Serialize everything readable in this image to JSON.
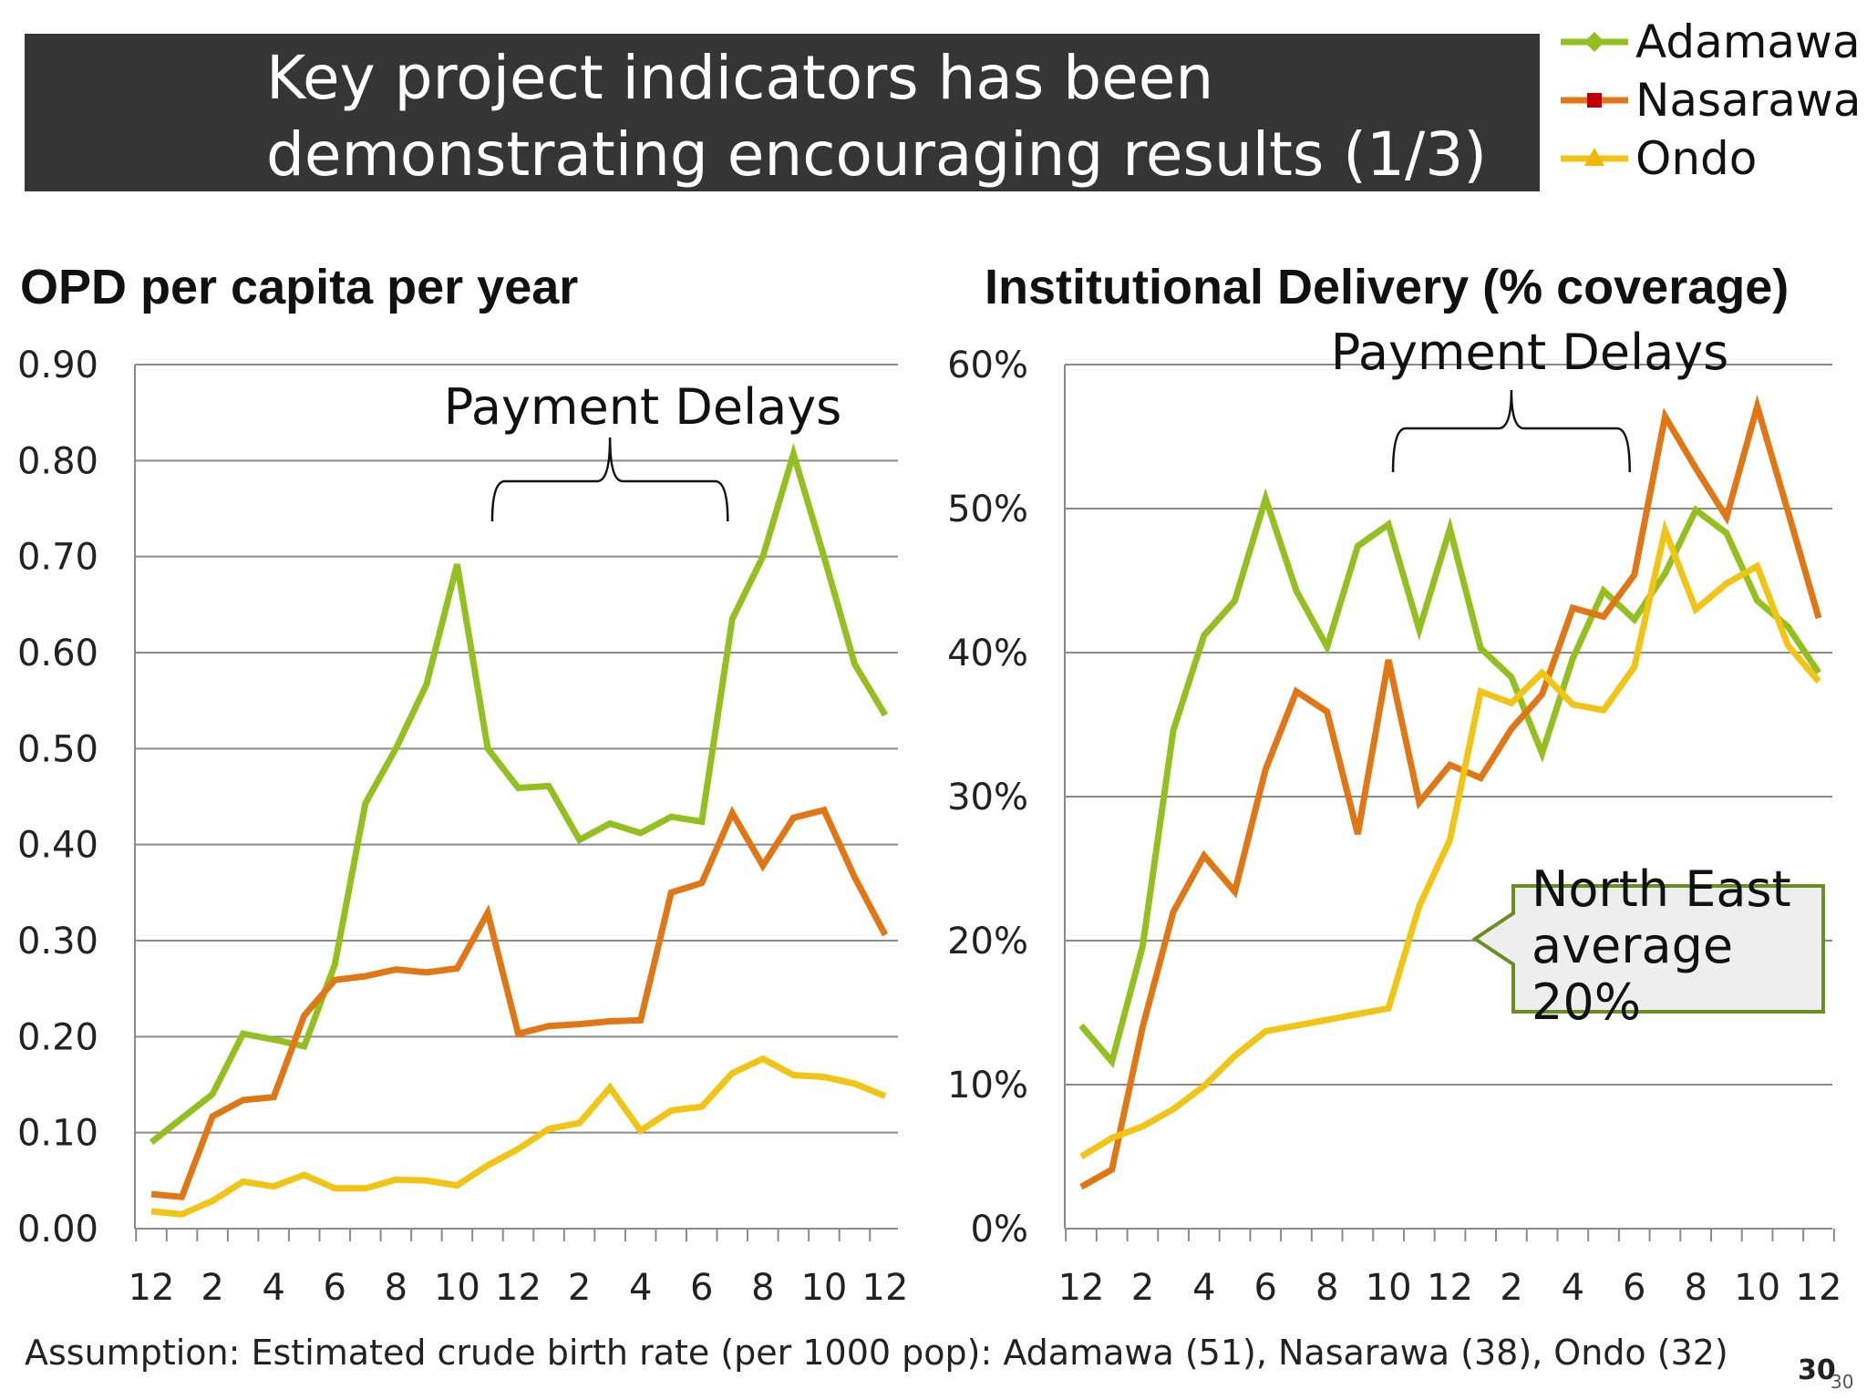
{
  "slide": {
    "title_line1": "Key project indicators has been",
    "title_line2": "demonstrating encouraging results (1/3)",
    "footnote": "Assumption: Estimated crude birth rate (per 1000 pop): Adamawa (51), Nasarawa (38), Ondo (32)",
    "page_number": "30",
    "page_number_sub": "30"
  },
  "legend": [
    {
      "label": "Adamawa",
      "color": "#93c01f",
      "marker": "diamond"
    },
    {
      "label": "Nasarawa",
      "color": "#e07614",
      "marker": "square",
      "marker_color": "#c00000"
    },
    {
      "label": "Ondo",
      "color": "#f2c414",
      "marker": "triangle",
      "marker_color": "#f2b800"
    }
  ],
  "chart_data": [
    {
      "type": "line",
      "title": "OPD per capita per year",
      "xlabel": "",
      "ylabel": "",
      "ylim": [
        0,
        0.9
      ],
      "yticks": [
        "0.00",
        "0.10",
        "0.20",
        "0.30",
        "0.40",
        "0.50",
        "0.60",
        "0.70",
        "0.80",
        "0.90"
      ],
      "x_tick_labels": [
        "12",
        "2",
        "4",
        "6",
        "8",
        "10",
        "12",
        "2",
        "4",
        "6",
        "8",
        "10",
        "12"
      ],
      "grid": true,
      "annotation": {
        "text": "Payment Delays",
        "bracket_from_index": 11,
        "bracket_to_index": 19
      },
      "series": [
        {
          "name": "Adamawa",
          "color": "#93c01f",
          "values": [
            0.09,
            0.115,
            0.14,
            0.203,
            0.197,
            0.19,
            0.275,
            0.443,
            0.5,
            0.567,
            0.692,
            0.5,
            0.459,
            0.461,
            0.405,
            0.422,
            0.412,
            0.429,
            0.424,
            0.635,
            0.7,
            0.807,
            0.7,
            0.588,
            0.535
          ]
        },
        {
          "name": "Nasarawa",
          "color": "#e07614",
          "values": [
            0.036,
            0.033,
            0.117,
            0.134,
            0.137,
            0.222,
            0.259,
            0.263,
            0.27,
            0.267,
            0.271,
            0.329,
            0.203,
            0.211,
            0.213,
            0.216,
            0.217,
            0.35,
            0.36,
            0.433,
            0.378,
            0.428,
            0.436,
            0.366,
            0.306
          ]
        },
        {
          "name": "Ondo",
          "color": "#f2c414",
          "values": [
            0.018,
            0.015,
            0.029,
            0.049,
            0.044,
            0.056,
            0.042,
            0.042,
            0.051,
            0.05,
            0.045,
            0.066,
            0.083,
            0.104,
            0.11,
            0.147,
            0.102,
            0.123,
            0.127,
            0.162,
            0.177,
            0.16,
            0.158,
            0.151,
            0.138
          ]
        }
      ]
    },
    {
      "type": "line",
      "title": "Institutional Delivery (% coverage)",
      "xlabel": "",
      "ylabel": "",
      "ylim": [
        0,
        60
      ],
      "yticks": [
        "0%",
        "10%",
        "20%",
        "30%",
        "40%",
        "50%",
        "60%"
      ],
      "x_tick_labels": [
        "12",
        "2",
        "4",
        "6",
        "8",
        "10",
        "12",
        "2",
        "4",
        "6",
        "8",
        "10",
        "12"
      ],
      "grid": true,
      "annotation": {
        "text": "Payment Delays",
        "bracket_from_index": 10,
        "bracket_to_index": 18
      },
      "callout": {
        "line1": "North East",
        "line2": "average",
        "line3": "20%"
      },
      "series": [
        {
          "name": "Adamawa",
          "color": "#93c01f",
          "values": [
            14.1,
            11.6,
            19.6,
            34.6,
            41.2,
            43.6,
            50.7,
            44.3,
            40.4,
            47.4,
            48.9,
            41.6,
            48.6,
            40.3,
            38.3,
            33.0,
            39.6,
            44.3,
            42.3,
            45.5,
            49.9,
            48.3,
            43.6,
            41.8,
            38.6
          ]
        },
        {
          "name": "Nasarawa",
          "color": "#e07614",
          "values": [
            2.9,
            4.1,
            14.0,
            22.0,
            25.9,
            23.4,
            31.9,
            37.3,
            35.9,
            27.4,
            39.5,
            29.6,
            32.2,
            31.3,
            34.7,
            37.1,
            43.1,
            42.5,
            45.4,
            56.4,
            52.8,
            49.4,
            57.1,
            49.8,
            42.4
          ]
        },
        {
          "name": "Ondo",
          "color": "#f2c414",
          "values": [
            5.0,
            6.3,
            7.1,
            8.3,
            9.9,
            12.0,
            13.7,
            14.1,
            14.5,
            14.9,
            15.3,
            22.4,
            27.0,
            37.3,
            36.5,
            38.6,
            36.4,
            36.0,
            39.0,
            48.5,
            43.0,
            44.8,
            46.0,
            40.5,
            38.0
          ]
        }
      ]
    }
  ]
}
